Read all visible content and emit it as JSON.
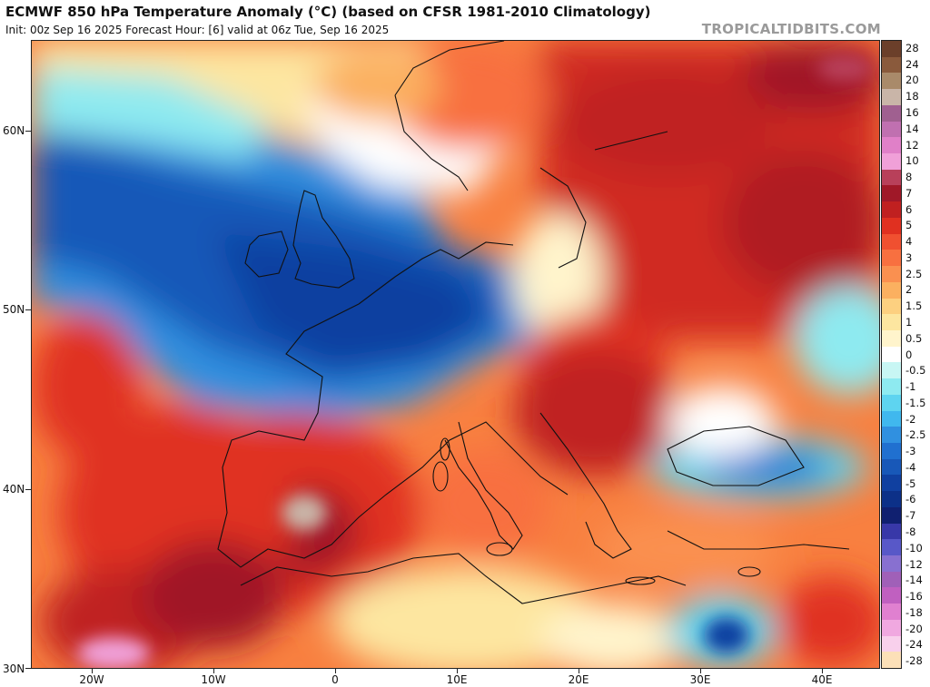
{
  "header": {
    "title": "ECMWF 850 hPa Temperature Anomaly (°C) (based on CFSR 1981-2010 Climatology)",
    "subtitle": "Init: 00z Sep 16 2025   Forecast Hour: [6]   valid at 06z Tue, Sep 16 2025",
    "brand": "TROPICALTIDBITS.COM"
  },
  "map": {
    "lat_labels": [
      "60N",
      "50N",
      "40N",
      "30N"
    ],
    "lon_labels": [
      "20W",
      "10W",
      "0",
      "10E",
      "20E",
      "30E",
      "40E"
    ]
  },
  "colorbar": {
    "levels": [
      {
        "label": "28",
        "color": "#6b3f2a"
      },
      {
        "label": "24",
        "color": "#8a5a3c"
      },
      {
        "label": "20",
        "color": "#a98a6a"
      },
      {
        "label": "18",
        "color": "#c9b5a8"
      },
      {
        "label": "16",
        "color": "#a06090"
      },
      {
        "label": "14",
        "color": "#c070b0"
      },
      {
        "label": "12",
        "color": "#e080c8"
      },
      {
        "label": "10",
        "color": "#f0a0d8"
      },
      {
        "label": "8",
        "color": "#b8405a"
      },
      {
        "label": "7",
        "color": "#a01828"
      },
      {
        "label": "6",
        "color": "#c02020"
      },
      {
        "label": "5",
        "color": "#e03020"
      },
      {
        "label": "4",
        "color": "#f05030"
      },
      {
        "label": "3",
        "color": "#f87040"
      },
      {
        "label": "2.5",
        "color": "#fa9050"
      },
      {
        "label": "2",
        "color": "#fbb060"
      },
      {
        "label": "1.5",
        "color": "#fdd080"
      },
      {
        "label": "1",
        "color": "#fde6a0"
      },
      {
        "label": "0.5",
        "color": "#fff4cc"
      },
      {
        "label": "0",
        "color": "#ffffff"
      },
      {
        "label": "-0.5",
        "color": "#c8f6f4"
      },
      {
        "label": "-1",
        "color": "#8eeaf0"
      },
      {
        "label": "-1.5",
        "color": "#5ed4f0"
      },
      {
        "label": "-2",
        "color": "#40b8ee"
      },
      {
        "label": "-2.5",
        "color": "#3090e0"
      },
      {
        "label": "-3",
        "color": "#2070d0"
      },
      {
        "label": "-4",
        "color": "#1858b8"
      },
      {
        "label": "-5",
        "color": "#1040a0"
      },
      {
        "label": "-6",
        "color": "#0c3088"
      },
      {
        "label": "-7",
        "color": "#102070"
      },
      {
        "label": "-8",
        "color": "#3838a8"
      },
      {
        "label": "-10",
        "color": "#5858c8"
      },
      {
        "label": "-12",
        "color": "#8870d0"
      },
      {
        "label": "-14",
        "color": "#a060b8"
      },
      {
        "label": "-16",
        "color": "#c060c0"
      },
      {
        "label": "-18",
        "color": "#e080d0"
      },
      {
        "label": "-20",
        "color": "#f0a8e0"
      },
      {
        "label": "-24",
        "color": "#f8d0ec"
      },
      {
        "label": "-28",
        "color": "#fce0b8"
      }
    ]
  }
}
